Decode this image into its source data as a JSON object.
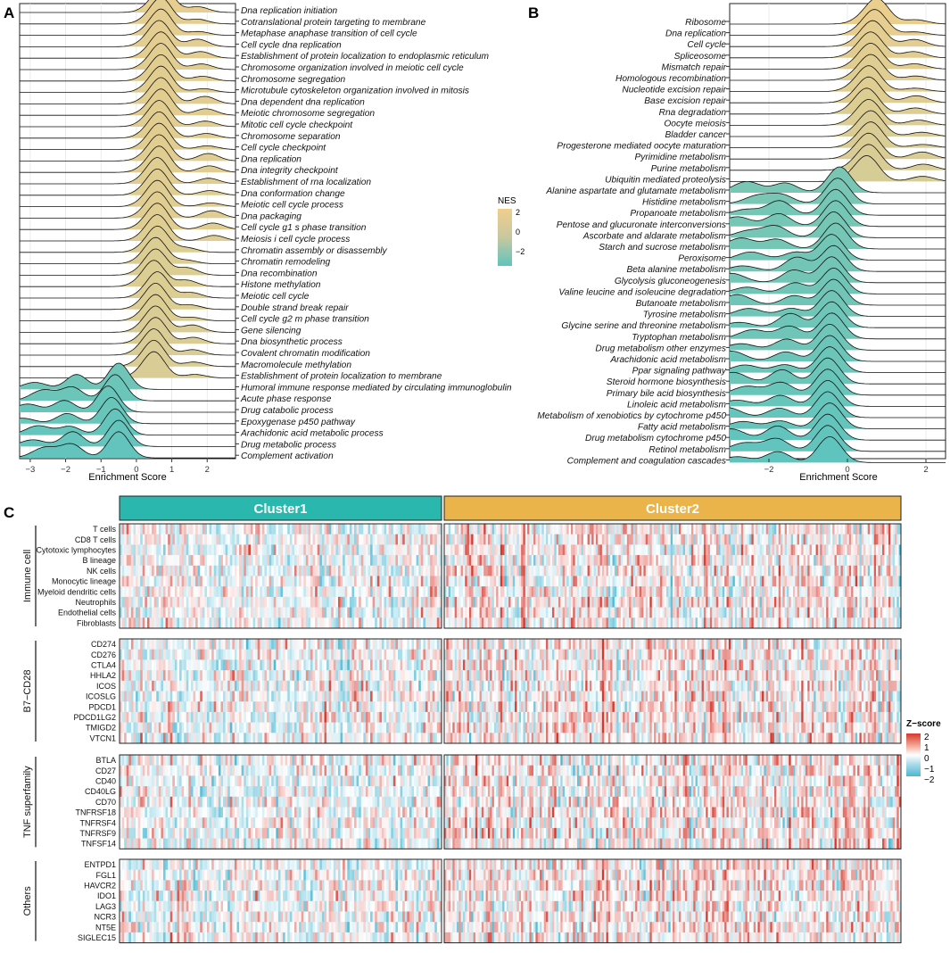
{
  "panels": {
    "a": "A",
    "b": "B",
    "c": "C"
  },
  "chart_data": [
    {
      "id": "panel-a",
      "type": "ridgeline",
      "xlabel": "Enrichment Score",
      "xlim": [
        -3.3,
        2.8
      ],
      "xticks": [
        -3,
        -2,
        -1,
        0,
        1,
        2
      ],
      "pathways": [
        {
          "name": "Dna replication initiation",
          "peak": 0.75,
          "nes": 2.2
        },
        {
          "name": "Cotranslational protein targeting to membrane",
          "peak": 0.7,
          "nes": 2.1
        },
        {
          "name": "Metaphase anaphase transition of cell cycle",
          "peak": 0.7,
          "nes": 2.1
        },
        {
          "name": "Cell cycle dna replication",
          "peak": 0.65,
          "nes": 2.1
        },
        {
          "name": "Establishment of protein localization to endoplasmic reticulum",
          "peak": 0.7,
          "nes": 2.1
        },
        {
          "name": "Chromosome organization involved in meiotic cell cycle",
          "peak": 0.7,
          "nes": 2.0
        },
        {
          "name": "Chromosome segregation",
          "peak": 0.7,
          "nes": 2.0
        },
        {
          "name": "Microtubule cytoskeleton organization involved in mitosis",
          "peak": 0.7,
          "nes": 2.0
        },
        {
          "name": "Dna dependent dna replication",
          "peak": 0.7,
          "nes": 2.0
        },
        {
          "name": "Meiotic chromosome segregation",
          "peak": 0.7,
          "nes": 2.0
        },
        {
          "name": "Mitotic cell cycle checkpoint",
          "peak": 0.65,
          "nes": 2.0
        },
        {
          "name": "Chromosome separation",
          "peak": 0.65,
          "nes": 2.0
        },
        {
          "name": "Cell cycle checkpoint",
          "peak": 0.65,
          "nes": 2.0
        },
        {
          "name": "Dna replication",
          "peak": 0.65,
          "nes": 2.0
        },
        {
          "name": "Dna integrity checkpoint",
          "peak": 0.65,
          "nes": 1.9
        },
        {
          "name": "Establishment of rna localization",
          "peak": 0.6,
          "nes": 1.9
        },
        {
          "name": "Dna conformation change",
          "peak": 0.6,
          "nes": 1.9
        },
        {
          "name": "Meiotic cell cycle process",
          "peak": 0.6,
          "nes": 1.9
        },
        {
          "name": "Dna packaging",
          "peak": 0.6,
          "nes": 1.9
        },
        {
          "name": "Cell cycle g1 s phase transition",
          "peak": 0.6,
          "nes": 1.9
        },
        {
          "name": "Meiosis i cell cycle process",
          "peak": 0.6,
          "nes": 1.9
        },
        {
          "name": "Chromatin assembly or disassembly",
          "peak": 0.6,
          "nes": 1.8
        },
        {
          "name": "Chromatin remodeling",
          "peak": 0.55,
          "nes": 1.8
        },
        {
          "name": "Dna recombination",
          "peak": 0.55,
          "nes": 1.8
        },
        {
          "name": "Histone methylation",
          "peak": 0.5,
          "nes": 1.8
        },
        {
          "name": "Meiotic cell cycle",
          "peak": 0.6,
          "nes": 1.8
        },
        {
          "name": "Double strand break repair",
          "peak": 0.55,
          "nes": 1.8
        },
        {
          "name": "Cell cycle g2 m phase transition",
          "peak": 0.55,
          "nes": 1.8
        },
        {
          "name": "Gene silencing",
          "peak": 0.55,
          "nes": 1.7
        },
        {
          "name": "Dna biosynthetic process",
          "peak": 0.55,
          "nes": 1.7
        },
        {
          "name": "Covalent chromatin modification",
          "peak": 0.5,
          "nes": 1.7
        },
        {
          "name": "Macromolecule methylation",
          "peak": 0.5,
          "nes": 1.7
        },
        {
          "name": "Establishment of protein localization to membrane",
          "peak": 0.5,
          "nes": 1.7
        },
        {
          "name": "Humoral immune response mediated by circulating immunoglobulin",
          "peak": -0.5,
          "nes": -2.0
        },
        {
          "name": "Acute phase response",
          "peak": -0.6,
          "nes": -2.1
        },
        {
          "name": "Drug catabolic process",
          "peak": -0.8,
          "nes": -2.2
        },
        {
          "name": "Epoxygenase p450 pathway",
          "peak": -0.7,
          "nes": -2.2
        },
        {
          "name": "Arachidonic acid metabolic process",
          "peak": -0.6,
          "nes": -2.3
        },
        {
          "name": "Drug metabolic process",
          "peak": -0.5,
          "nes": -2.3
        },
        {
          "name": "Complement activation",
          "peak": -0.5,
          "nes": -2.4
        }
      ]
    },
    {
      "id": "panel-b",
      "type": "ridgeline",
      "xlabel": "Enrichment Score",
      "xlim": [
        -3.0,
        2.5
      ],
      "xticks": [
        -2,
        0,
        2
      ],
      "pathways": [
        {
          "name": "Ribosome",
          "peak": 0.75,
          "nes": 2.3
        },
        {
          "name": "Dna replication",
          "peak": 0.7,
          "nes": 2.2
        },
        {
          "name": "Cell cycle",
          "peak": 0.65,
          "nes": 2.1
        },
        {
          "name": "Spliceosome",
          "peak": 0.6,
          "nes": 2.0
        },
        {
          "name": "Mismatch repair",
          "peak": 0.6,
          "nes": 2.0
        },
        {
          "name": "Homologous recombination",
          "peak": 0.6,
          "nes": 1.9
        },
        {
          "name": "Nucleotide excision repair",
          "peak": 0.55,
          "nes": 1.9
        },
        {
          "name": "Base excision repair",
          "peak": 0.55,
          "nes": 1.9
        },
        {
          "name": "Rna degradation",
          "peak": 0.5,
          "nes": 1.8
        },
        {
          "name": "Oocyte meiosis",
          "peak": 0.55,
          "nes": 1.8
        },
        {
          "name": "Bladder cancer",
          "peak": 0.6,
          "nes": 1.7
        },
        {
          "name": "Progesterone mediated oocyte maturation",
          "peak": 0.6,
          "nes": 1.7
        },
        {
          "name": "Pyrimidine metabolism",
          "peak": 0.55,
          "nes": 1.7
        },
        {
          "name": "Purine metabolism",
          "peak": 0.55,
          "nes": 1.7
        },
        {
          "name": "Ubiquitin mediated proteolysis",
          "peak": 0.5,
          "nes": 1.6
        },
        {
          "name": "Alanine aspartate and glutamate metabolism",
          "peak": -0.2,
          "nes": -1.6
        },
        {
          "name": "Histidine metabolism",
          "peak": -0.25,
          "nes": -1.6
        },
        {
          "name": "Propanoate metabolism",
          "peak": -0.3,
          "nes": -1.7
        },
        {
          "name": "Pentose and glucuronate interconversions",
          "peak": -0.3,
          "nes": -1.7
        },
        {
          "name": "Ascorbate and aldarate metabolism",
          "peak": -0.35,
          "nes": -1.7
        },
        {
          "name": "Starch and sucrose metabolism",
          "peak": -0.3,
          "nes": -1.7
        },
        {
          "name": "Peroxisome",
          "peak": -0.4,
          "nes": -1.8
        },
        {
          "name": "Beta alanine metabolism",
          "peak": -0.35,
          "nes": -1.8
        },
        {
          "name": "Glycolysis gluconeogenesis",
          "peak": -0.4,
          "nes": -1.8
        },
        {
          "name": "Valine leucine and isoleucine degradation",
          "peak": -0.35,
          "nes": -1.9
        },
        {
          "name": "Butanoate metabolism",
          "peak": -0.35,
          "nes": -1.9
        },
        {
          "name": "Tyrosine metabolism",
          "peak": -0.4,
          "nes": -1.9
        },
        {
          "name": "Glycine serine and threonine metabolism",
          "peak": -0.4,
          "nes": -2.0
        },
        {
          "name": "Tryptophan metabolism",
          "peak": -0.4,
          "nes": -2.0
        },
        {
          "name": "Drug metabolism other enzymes",
          "peak": -0.45,
          "nes": -2.0
        },
        {
          "name": "Arachidonic acid metabolism",
          "peak": -0.45,
          "nes": -2.1
        },
        {
          "name": "Ppar signaling pathway",
          "peak": -0.45,
          "nes": -2.1
        },
        {
          "name": "Steroid hormone biosynthesis",
          "peak": -0.5,
          "nes": -2.1
        },
        {
          "name": "Primary bile acid biosynthesis",
          "peak": -0.5,
          "nes": -2.2
        },
        {
          "name": "Linoleic acid metabolism",
          "peak": -0.5,
          "nes": -2.2
        },
        {
          "name": "Metabolism of xenobiotics by cytochrome p450",
          "peak": -0.5,
          "nes": -2.3
        },
        {
          "name": "Fatty acid metabolism",
          "peak": -0.45,
          "nes": -2.3
        },
        {
          "name": "Drug metabolism cytochrome p450",
          "peak": -0.5,
          "nes": -2.4
        },
        {
          "name": "Retinol metabolism",
          "peak": -0.5,
          "nes": -2.4
        },
        {
          "name": "Complement and coagulation cascades",
          "peak": -0.45,
          "nes": -2.5
        }
      ]
    },
    {
      "id": "panel-c",
      "type": "heatmap",
      "clusters": [
        {
          "name": "Cluster1",
          "color": "#2ab7ae",
          "samples": 140
        },
        {
          "name": "Cluster2",
          "color": "#eab44a",
          "samples": 220
        }
      ],
      "groups": [
        {
          "name": "Immune cell",
          "rows": [
            "T cells",
            "CD8 T cells",
            "Cytotoxic lymphocytes",
            "B lineage",
            "NK cells",
            "Monocytic lineage",
            "Myeloid dendritic cells",
            "Neutrophils",
            "Endothelial cells",
            "Fibroblasts"
          ]
        },
        {
          "name": "B7−CD28",
          "rows": [
            "CD274",
            "CD276",
            "CTLA4",
            "HHLA2",
            "ICOS",
            "ICOSLG",
            "PDCD1",
            "PDCD1LG2",
            "TMIGD2",
            "VTCN1"
          ]
        },
        {
          "name": "TNF superfamily",
          "rows": [
            "BTLA",
            "CD27",
            "CD40",
            "CD40LG",
            "CD70",
            "TNFRSF18",
            "TNFRSF4",
            "TNFRSF9",
            "TNFSF14"
          ]
        },
        {
          "name": "Others",
          "rows": [
            "ENTPD1",
            "FGL1",
            "HAVCR2",
            "IDO1",
            "LAG3",
            "NCR3",
            "NT5E",
            "SIGLEC15"
          ]
        }
      ],
      "zrange": [
        -2,
        2
      ],
      "colors": {
        "low": "#4bb8d3",
        "mid": "#ffffff",
        "high": "#d6382e"
      }
    }
  ],
  "legend_nes": {
    "title": "NES",
    "ticks": [
      "2",
      "0",
      "−2"
    ],
    "low": "#5fc4bd",
    "high": "#f0ce8c"
  },
  "legend_z": {
    "title": "Z−score",
    "ticks": [
      "2",
      "1",
      "0",
      "−1",
      "−2"
    ]
  }
}
